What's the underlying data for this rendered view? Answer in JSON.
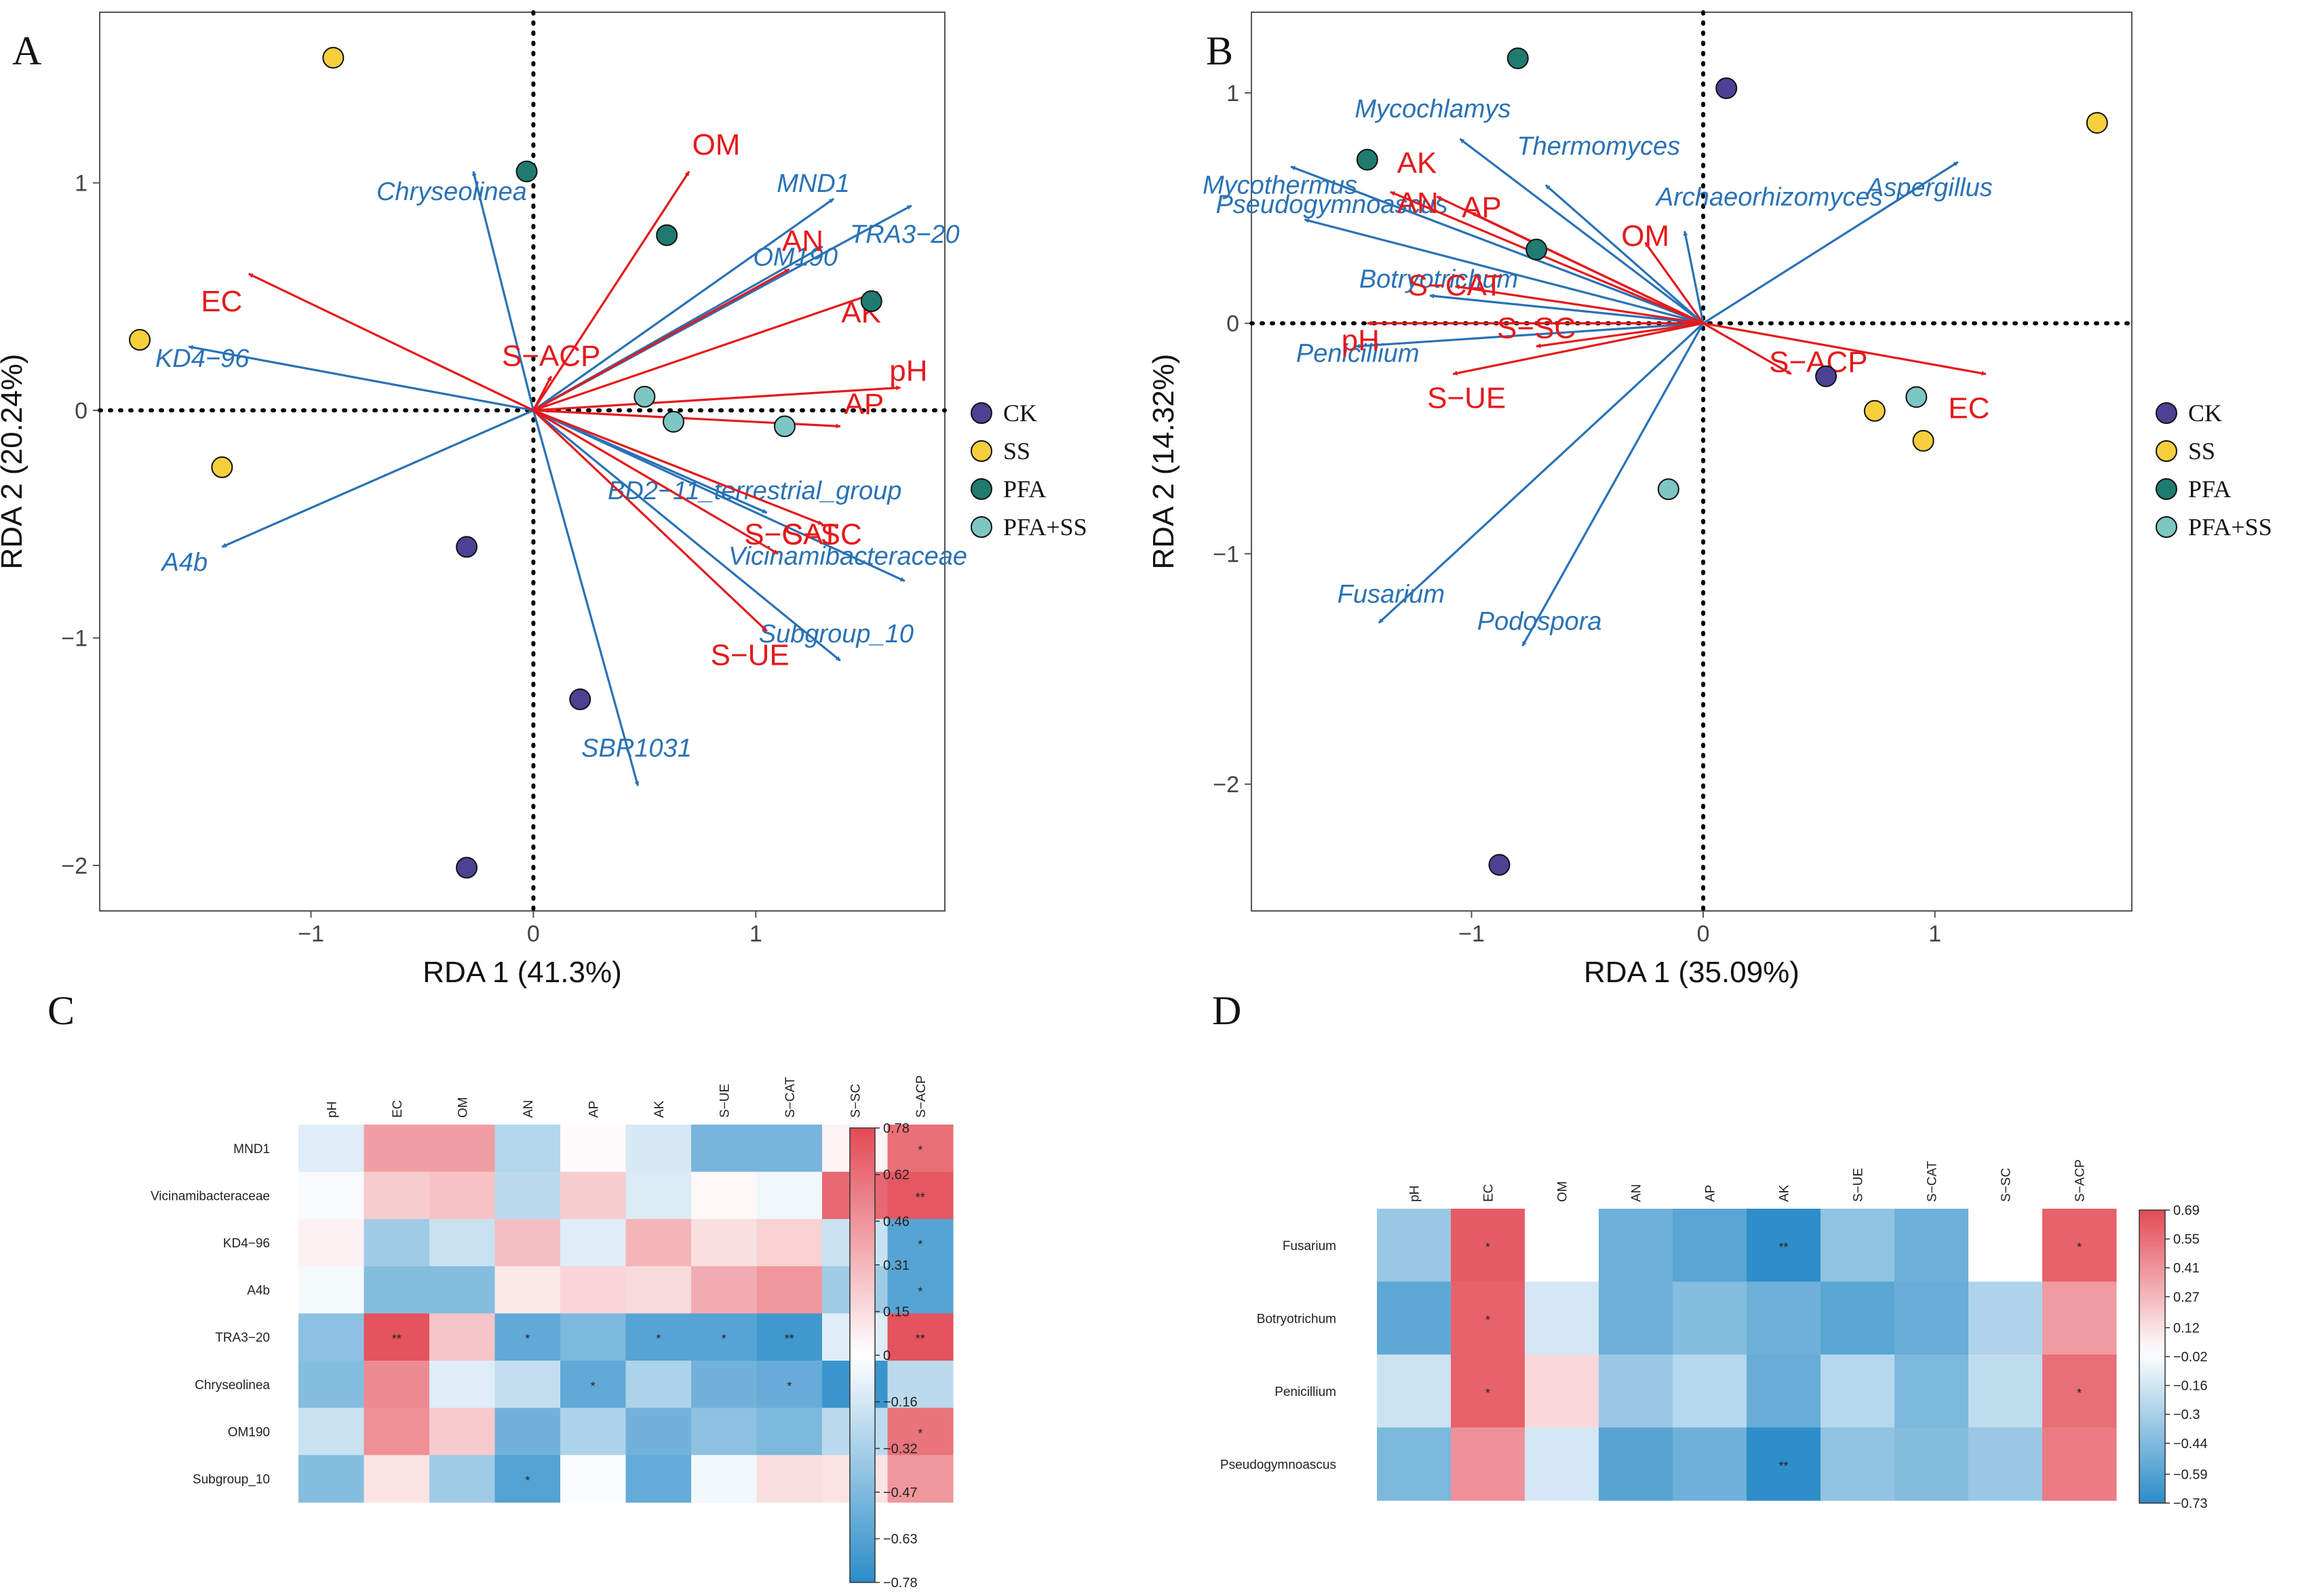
{
  "colors": {
    "arrow_species": "#2a72b5",
    "arrow_env": "#e41a1c",
    "CK": "#4b4293",
    "SS": "#f6cf3c",
    "PFA": "#1f7b6f",
    "PFA+SS": "#7cc6c3",
    "heat_pos": "#e34a55",
    "heat_neg": "#2b8cc8",
    "heat_mid": "#ffffff"
  },
  "legend": {
    "groups": [
      "CK",
      "SS",
      "PFA",
      "PFA+SS"
    ]
  },
  "chart_data": [
    {
      "id": "A",
      "type": "scatter",
      "subtype": "rda_biplot",
      "panel_label": "A",
      "xlabel": "RDA 1 (41.3%)",
      "ylabel": "RDA 2 (20.24%)",
      "xlim": [
        -1.95,
        1.85
      ],
      "ylim": [
        -2.2,
        1.75
      ],
      "xticks": [
        -1,
        0,
        1
      ],
      "xtick_labels": [
        "−1",
        "0",
        "1"
      ],
      "yticks": [
        -2,
        -1,
        0,
        1
      ],
      "ytick_labels": [
        "−2",
        "−1",
        "0",
        "1"
      ],
      "species_arrows": [
        {
          "label": "Chryseolinea",
          "x": -0.27,
          "y": 1.05
        },
        {
          "label": "KD4−96",
          "x": -1.55,
          "y": 0.28
        },
        {
          "label": "A4b",
          "x": -1.4,
          "y": -0.6
        },
        {
          "label": "MND1",
          "x": 1.35,
          "y": 0.93
        },
        {
          "label": "TRA3−20",
          "x": 1.7,
          "y": 0.9
        },
        {
          "label": "OM190",
          "x": 1.3,
          "y": 0.72
        },
        {
          "label": "BD2−11_terrestrial_group",
          "x": 1.05,
          "y": -0.45
        },
        {
          "label": "Vicinamibacteraceae",
          "x": 1.67,
          "y": -0.75
        },
        {
          "label": "Subgroup_10",
          "x": 1.38,
          "y": -1.1
        },
        {
          "label": "SBR1031",
          "x": 0.47,
          "y": -1.65
        }
      ],
      "env_arrows": [
        {
          "label": "OM",
          "x": 0.7,
          "y": 1.05
        },
        {
          "label": "EC",
          "x": -1.28,
          "y": 0.6
        },
        {
          "label": "AN",
          "x": 1.15,
          "y": 0.62
        },
        {
          "label": "AK",
          "x": 1.55,
          "y": 0.52
        },
        {
          "label": "pH",
          "x": 1.65,
          "y": 0.1
        },
        {
          "label": "AP",
          "x": 1.38,
          "y": -0.07
        },
        {
          "label": "S−ACP",
          "x": 0.08,
          "y": 0.15
        },
        {
          "label": "S−SC",
          "x": 1.3,
          "y": -0.5
        },
        {
          "label": "S−CAT",
          "x": 1.1,
          "y": -0.63
        },
        {
          "label": "S−UE",
          "x": 1.05,
          "y": -0.97
        }
      ],
      "points": [
        {
          "group": "SS",
          "x": -0.9,
          "y": 1.55
        },
        {
          "group": "PFA",
          "x": -0.03,
          "y": 1.05
        },
        {
          "group": "PFA",
          "x": 0.6,
          "y": 0.77
        },
        {
          "group": "PFA",
          "x": 1.52,
          "y": 0.48
        },
        {
          "group": "SS",
          "x": -1.77,
          "y": 0.31
        },
        {
          "group": "SS",
          "x": -1.4,
          "y": -0.25
        },
        {
          "group": "PFA+SS",
          "x": 0.5,
          "y": 0.06
        },
        {
          "group": "PFA+SS",
          "x": 0.63,
          "y": -0.05
        },
        {
          "group": "PFA+SS",
          "x": 1.13,
          "y": -0.07
        },
        {
          "group": "CK",
          "x": -0.3,
          "y": -0.6
        },
        {
          "group": "CK",
          "x": 0.21,
          "y": -1.27
        },
        {
          "group": "CK",
          "x": -0.3,
          "y": -2.01
        }
      ]
    },
    {
      "id": "B",
      "type": "scatter",
      "subtype": "rda_biplot",
      "panel_label": "B",
      "xlabel": "RDA 1 (35.09%)",
      "ylabel": "RDA 2 (14.32%)",
      "xlim": [
        -1.95,
        1.85
      ],
      "ylim": [
        -2.55,
        1.35
      ],
      "xticks": [
        -1,
        0,
        1
      ],
      "xtick_labels": [
        "−1",
        "0",
        "1"
      ],
      "yticks": [
        -2,
        -1,
        0,
        1
      ],
      "ytick_labels": [
        "−2",
        "−1",
        "0",
        "1"
      ],
      "species_arrows": [
        {
          "label": "Mycochlamys",
          "x": -1.05,
          "y": 0.8
        },
        {
          "label": "Thermomyces",
          "x": -0.68,
          "y": 0.6
        },
        {
          "label": "Mycothermus",
          "x": -1.78,
          "y": 0.68
        },
        {
          "label": "Pseudogymnoascus",
          "x": -1.72,
          "y": 0.45
        },
        {
          "label": "Botryotrichum",
          "x": -1.18,
          "y": 0.12
        },
        {
          "label": "Penicillium",
          "x": -1.5,
          "y": -0.1
        },
        {
          "label": "Archaeorhizomyces",
          "x": -0.08,
          "y": 0.4
        },
        {
          "label": "Aspergillus",
          "x": 1.1,
          "y": 0.7
        },
        {
          "label": "Fusarium",
          "x": -1.4,
          "y": -1.3
        },
        {
          "label": "Podospora",
          "x": -0.78,
          "y": -1.4
        }
      ],
      "env_arrows": [
        {
          "label": "AK",
          "x": -1.35,
          "y": 0.57
        },
        {
          "label": "AN",
          "x": -1.15,
          "y": 0.55
        },
        {
          "label": "AP",
          "x": -1.0,
          "y": 0.48
        },
        {
          "label": "OM",
          "x": -0.25,
          "y": 0.35
        },
        {
          "label": "S−CAT",
          "x": -1.07,
          "y": 0.16
        },
        {
          "label": "S−SC",
          "x": -0.72,
          "y": -0.1
        },
        {
          "label": "pH",
          "x": -1.45,
          "y": 0.0
        },
        {
          "label": "S−UE",
          "x": -1.08,
          "y": -0.22
        },
        {
          "label": "S−ACP",
          "x": 0.38,
          "y": -0.22
        },
        {
          "label": "EC",
          "x": 1.22,
          "y": -0.22
        }
      ],
      "points": [
        {
          "group": "PFA",
          "x": -0.8,
          "y": 1.15
        },
        {
          "group": "CK",
          "x": 0.1,
          "y": 1.02
        },
        {
          "group": "SS",
          "x": 1.7,
          "y": 0.87
        },
        {
          "group": "PFA",
          "x": -1.45,
          "y": 0.71
        },
        {
          "group": "PFA",
          "x": -0.72,
          "y": 0.32
        },
        {
          "group": "CK",
          "x": 0.53,
          "y": -0.23
        },
        {
          "group": "SS",
          "x": 0.74,
          "y": -0.38
        },
        {
          "group": "SS",
          "x": 0.95,
          "y": -0.51
        },
        {
          "group": "PFA+SS",
          "x": 0.92,
          "y": -0.32
        },
        {
          "group": "PFA+SS",
          "x": -0.15,
          "y": -0.72
        },
        {
          "group": "CK",
          "x": -0.88,
          "y": -2.35
        }
      ]
    },
    {
      "id": "C",
      "type": "heatmap",
      "panel_label": "C",
      "columns": [
        "pH",
        "EC",
        "OM",
        "AN",
        "AP",
        "AK",
        "S−UE",
        "S−CAT",
        "S−SC",
        "S−ACP"
      ],
      "rows": [
        "MND1",
        "Vicinamibacteraceae",
        "KD4−96",
        "A4b",
        "TRA3−20",
        "Chryseolinea",
        "OM190",
        "Subgroup_10"
      ],
      "values": [
        [
          -0.12,
          0.42,
          0.42,
          -0.28,
          0.02,
          -0.15,
          -0.5,
          -0.5,
          0.05,
          0.62
        ],
        [
          -0.03,
          0.22,
          0.26,
          -0.25,
          0.22,
          -0.13,
          0.03,
          -0.05,
          0.65,
          0.72
        ],
        [
          0.06,
          -0.35,
          -0.2,
          0.28,
          -0.12,
          0.32,
          0.14,
          0.2,
          -0.2,
          -0.62
        ],
        [
          -0.04,
          -0.45,
          -0.45,
          0.1,
          0.18,
          0.16,
          0.36,
          0.45,
          -0.35,
          -0.62
        ],
        [
          -0.42,
          0.74,
          0.25,
          -0.58,
          -0.48,
          -0.62,
          -0.62,
          -0.7,
          -0.12,
          0.74
        ],
        [
          -0.45,
          0.5,
          -0.12,
          -0.22,
          -0.58,
          -0.3,
          -0.52,
          -0.56,
          -0.72,
          -0.25
        ],
        [
          -0.2,
          0.48,
          0.23,
          -0.52,
          -0.3,
          -0.52,
          -0.42,
          -0.48,
          -0.25,
          0.6
        ],
        [
          -0.45,
          0.12,
          -0.35,
          -0.63,
          -0.02,
          -0.57,
          -0.05,
          0.14,
          0.12,
          0.45
        ]
      ],
      "significance": [
        [
          "",
          "",
          "",
          "",
          "",
          "",
          "",
          "",
          "",
          "*"
        ],
        [
          "",
          "",
          "",
          "",
          "",
          "",
          "",
          "",
          "*",
          "**"
        ],
        [
          "",
          "",
          "",
          "",
          "",
          "",
          "",
          "",
          "",
          "*"
        ],
        [
          "",
          "",
          "",
          "",
          "",
          "",
          "",
          "",
          "",
          "*"
        ],
        [
          "",
          "**",
          "",
          "*",
          "",
          "*",
          "*",
          "**",
          "",
          "**"
        ],
        [
          "",
          "",
          "",
          "",
          "*",
          "",
          "",
          "*",
          "**",
          ""
        ],
        [
          "",
          "",
          "",
          "",
          "",
          "",
          "",
          "",
          "",
          "*"
        ],
        [
          "",
          "",
          "",
          "*",
          "",
          "",
          "",
          "",
          "",
          ""
        ]
      ],
      "scale_min": -0.78,
      "scale_max": 0.78,
      "colorbar_ticks": [
        0.78,
        0.62,
        0.46,
        0.31,
        0.15,
        0,
        -0.16,
        -0.32,
        -0.47,
        -0.63,
        -0.78
      ],
      "colorbar_labels": [
        "0.78",
        "0.62",
        "0.46",
        "0.31",
        "0.15",
        "0",
        "−0.16",
        "−0.32",
        "−0.47",
        "−0.63",
        "−0.78"
      ]
    },
    {
      "id": "D",
      "type": "heatmap",
      "panel_label": "D",
      "columns": [
        "pH",
        "EC",
        "OM",
        "AN",
        "AP",
        "AK",
        "S−UE",
        "S−CAT",
        "S−SC",
        "S−ACP"
      ],
      "rows": [
        "Fusarium",
        "Botryotrichum",
        "Penicillium",
        "Pseudogymnoascus"
      ],
      "values": [
        [
          -0.35,
          0.62,
          0.0,
          -0.5,
          -0.57,
          -0.72,
          -0.38,
          -0.5,
          0.0,
          0.6
        ],
        [
          -0.55,
          0.6,
          -0.15,
          -0.5,
          -0.42,
          -0.5,
          -0.57,
          -0.52,
          -0.28,
          0.38
        ],
        [
          -0.18,
          0.6,
          0.15,
          -0.35,
          -0.25,
          -0.52,
          -0.25,
          -0.45,
          -0.22,
          0.55
        ],
        [
          -0.45,
          0.42,
          -0.15,
          -0.58,
          -0.5,
          -0.72,
          -0.38,
          -0.42,
          -0.35,
          0.5
        ]
      ],
      "significance": [
        [
          "",
          "*",
          "",
          "",
          "",
          "**",
          "",
          "",
          "",
          "*"
        ],
        [
          "",
          "*",
          "",
          "",
          "",
          "",
          "",
          "",
          "",
          ""
        ],
        [
          "",
          "*",
          "",
          "",
          "",
          "",
          "",
          "",
          "",
          "*"
        ],
        [
          "",
          "",
          "",
          "",
          "",
          "**",
          "",
          "",
          "",
          ""
        ]
      ],
      "scale_min": -0.73,
      "scale_max": 0.69,
      "colorbar_ticks": [
        0.69,
        0.55,
        0.41,
        0.27,
        0.12,
        -0.02,
        -0.16,
        -0.3,
        -0.44,
        -0.59,
        -0.73
      ],
      "colorbar_labels": [
        "0.69",
        "0.55",
        "0.41",
        "0.27",
        "0.12",
        "−0.02",
        "−0.16",
        "−0.3",
        "−0.44",
        "−0.59",
        "−0.73"
      ]
    }
  ]
}
